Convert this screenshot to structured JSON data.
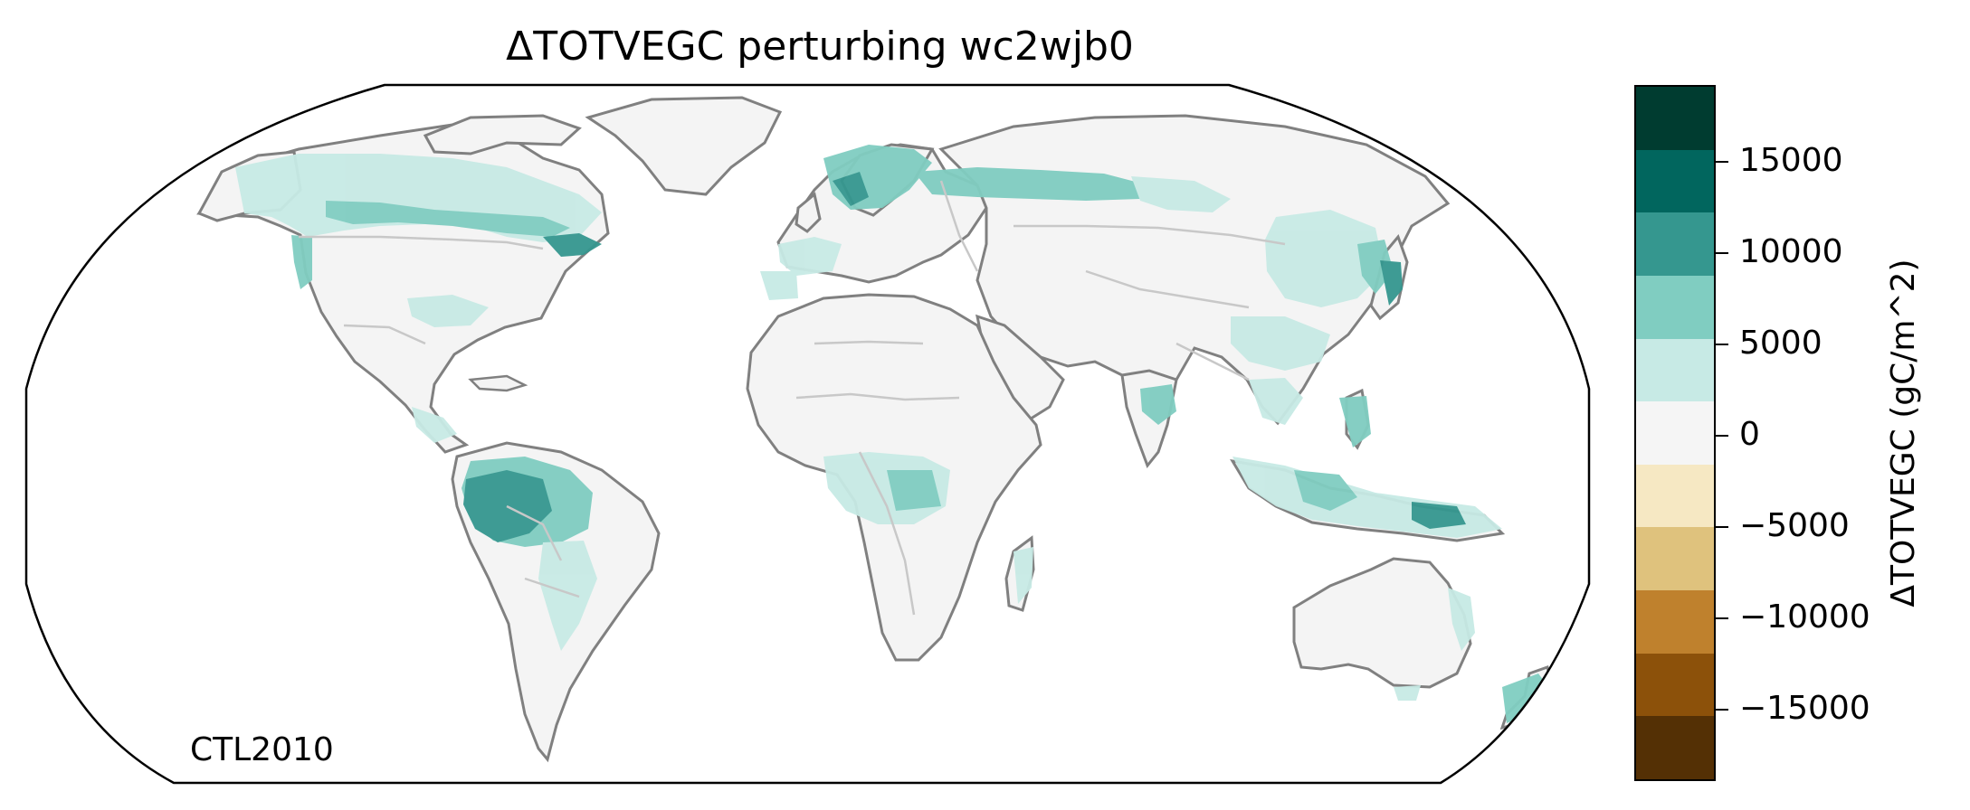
{
  "title": "ΔTOTVEGC perturbing wc2wjb0",
  "corner_label": "CTL2010",
  "colorbar": {
    "label": "ΔTOTVEGC (gC/m^2)",
    "ticks": [
      "15000",
      "10000",
      "5000",
      "0",
      "−5000",
      "−10000",
      "−15000"
    ],
    "tick_values": [
      15000,
      10000,
      5000,
      0,
      -5000,
      -10000,
      -15000
    ],
    "range": [
      -20000,
      20000
    ],
    "colors": [
      "#003c30",
      "#01665e",
      "#35978f",
      "#80cdc1",
      "#c7eae5",
      "#f5f5f5",
      "#f6e8c3",
      "#dfc27d",
      "#bf812d",
      "#8c510a",
      "#543005"
    ]
  },
  "map": {
    "projection": "Robinson",
    "ocean_color": "#ffffff",
    "land_color": "#f5f5f5",
    "coastline_color": "#808080",
    "border_color": "#c8c8c8"
  }
}
